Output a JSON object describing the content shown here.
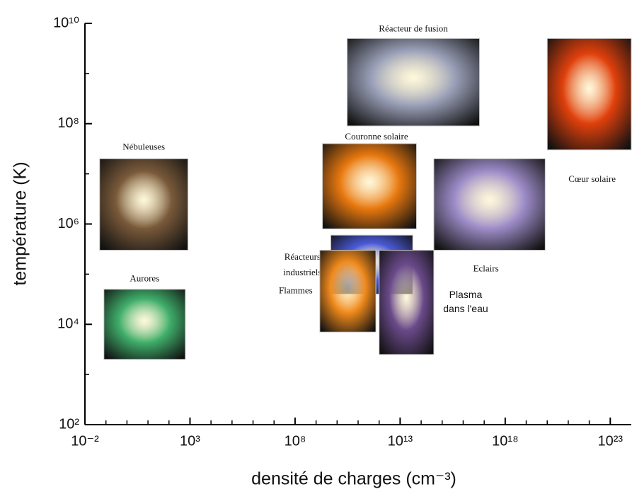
{
  "chart_data": {
    "type": "region",
    "x_label": "densité de charges (cm⁻³)",
    "y_label": "température (K)",
    "xscale": "log",
    "yscale": "log",
    "xlim": [
      0.01,
      1e+24
    ],
    "ylim": [
      100,
      10000000000.0
    ],
    "xticks": [
      {
        "value": 0.01,
        "label": "10⁻²"
      },
      {
        "value": 1000,
        "label": "10³"
      },
      {
        "value": 100000000.0,
        "label": "10⁸"
      },
      {
        "value": 10000000000000.0,
        "label": "10¹³"
      },
      {
        "value": 1e+18,
        "label": "10¹⁸"
      },
      {
        "value": 1e+23,
        "label": "10²³"
      }
    ],
    "yticks": [
      {
        "value": 100,
        "label": "10²"
      },
      {
        "value": 10000,
        "label": "10⁴"
      },
      {
        "value": 1000000,
        "label": "10⁶"
      },
      {
        "value": 100000000.0,
        "label": "10⁸"
      },
      {
        "value": 10000000000.0,
        "label": "10¹⁰"
      }
    ],
    "xminorticks": [
      0.1,
      1,
      10,
      100,
      10000,
      100000,
      1000000,
      10000000.0,
      1000000000.0,
      10000000000.0,
      100000000000.0,
      1000000000000.0,
      100000000000000.0,
      1000000000000000.0,
      1e+16,
      1e+17,
      1e+19,
      1e+20,
      1e+21,
      1e+22
    ],
    "yminorticks": [
      1000,
      100000,
      10000000.0,
      1000000000.0
    ],
    "regions": [
      {
        "label_lines": [
          "Nébuleuses"
        ],
        "x": [
          0.05,
          800
        ],
        "y": [
          300000,
          20000000.0
        ],
        "color": "#7a5a3a"
      },
      {
        "label_lines": [
          "Aurores"
        ],
        "x": [
          0.08,
          600
        ],
        "y": [
          2000,
          50000
        ],
        "color": "#3fae6a"
      },
      {
        "label_lines": [
          "Réacteur de fusion"
        ],
        "x": [
          30000000000.0,
          6e+16
        ],
        "y": [
          90000000.0,
          5000000000.0
        ],
        "color": "#9aa0b8"
      },
      {
        "label_lines": [
          "Cœur solaire"
        ],
        "x": [
          1e+20,
          1e+24
        ],
        "y": [
          30000000.0,
          5000000000.0
        ],
        "color": "#e0400c"
      },
      {
        "label_lines": [
          "Couronne solaire"
        ],
        "x": [
          2000000000.0,
          60000000000000.0
        ],
        "y": [
          800000,
          40000000.0
        ],
        "color": "#e8780f"
      },
      {
        "label_lines": [
          "Eclairs"
        ],
        "x": [
          400000000000000.0,
          8e+19
        ],
        "y": [
          300000,
          20000000.0
        ],
        "color": "#9d8cc8"
      },
      {
        "label_lines": [
          "Réacteurs",
          "industriels"
        ],
        "x": [
          5000000000.0,
          40000000000000.0
        ],
        "y": [
          40000,
          600000
        ],
        "color": "#4a5ad8"
      },
      {
        "label_lines": [
          "Flammes"
        ],
        "x": [
          1500000000.0,
          700000000000.0
        ],
        "y": [
          7000,
          300000
        ],
        "color": "#f08a1c"
      },
      {
        "label_lines": [
          "Plasma",
          "dans l'eau"
        ],
        "x": [
          1000000000000.0,
          400000000000000.0
        ],
        "y": [
          2500,
          300000
        ],
        "color": "#6a4a8a"
      }
    ]
  }
}
